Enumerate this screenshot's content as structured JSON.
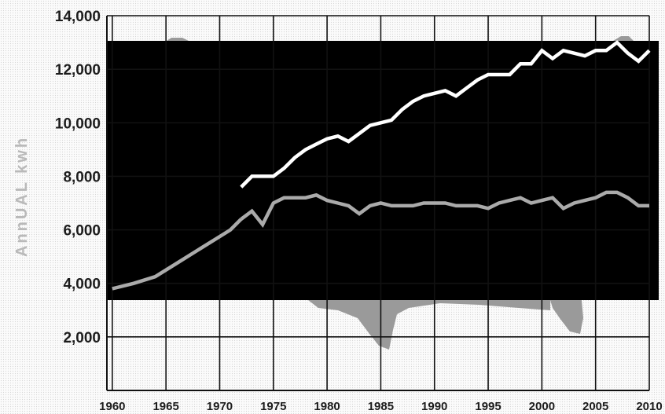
{
  "chart_data": {
    "type": "line",
    "title": "",
    "xlabel": "",
    "ylabel": "AnnUAL kwh",
    "xlim": [
      1959.5,
      2010
    ],
    "ylim": [
      0,
      14000
    ],
    "x_ticks": [
      1960,
      1965,
      1970,
      1975,
      1980,
      1985,
      1990,
      1995,
      2000,
      2005,
      2010
    ],
    "y_ticks": [
      2000,
      4000,
      6000,
      8000,
      10000,
      12000,
      14000
    ],
    "y_tick_labels": [
      "2,000",
      "4,000",
      "6,000",
      "8,000",
      "10,000",
      "12,000",
      "14,000"
    ],
    "x_tick_labels": [
      "1960",
      "1965",
      "1970",
      "1975",
      "1980",
      "1985",
      "1990",
      "1995",
      "2000",
      "2005",
      "2010"
    ],
    "grid": true,
    "legend": "none",
    "colors": {
      "background": "#fbfbfb",
      "panel": "#000000",
      "grid": "#111111",
      "map": "#9a9a9a",
      "series_upper": "#ffffff",
      "series_lower": "#aaaaaa",
      "series_early": "#aaaaaa"
    },
    "series": [
      {
        "key": "early",
        "color": "#aaaaaa",
        "x": [
          1960,
          1962,
          1964,
          1966,
          1968,
          1970,
          1971,
          1972
        ],
        "y": [
          3800,
          4000,
          4250,
          4750,
          5250,
          5750,
          6000,
          6400
        ]
      },
      {
        "key": "upper",
        "color": "#ffffff",
        "x": [
          1972,
          1973,
          1974,
          1975,
          1976,
          1977,
          1978,
          1979,
          1980,
          1981,
          1982,
          1983,
          1984,
          1985,
          1986,
          1987,
          1988,
          1989,
          1990,
          1991,
          1992,
          1993,
          1994,
          1995,
          1996,
          1997,
          1998,
          1999,
          2000,
          2001,
          2002,
          2003,
          2004,
          2005,
          2006,
          2007,
          2008,
          2009,
          2010
        ],
        "y": [
          7600,
          8000,
          8000,
          8000,
          8300,
          8700,
          9000,
          9200,
          9400,
          9500,
          9300,
          9600,
          9900,
          10000,
          10100,
          10500,
          10800,
          11000,
          11100,
          11200,
          11000,
          11300,
          11600,
          11800,
          11800,
          11800,
          12200,
          12200,
          12700,
          12400,
          12700,
          12600,
          12500,
          12700,
          12700,
          13000,
          12600,
          12300,
          12700
        ]
      },
      {
        "key": "lower",
        "color": "#aaaaaa",
        "x": [
          1972,
          1973,
          1974,
          1975,
          1976,
          1977,
          1978,
          1979,
          1980,
          1981,
          1982,
          1983,
          1984,
          1985,
          1986,
          1987,
          1988,
          1989,
          1990,
          1991,
          1992,
          1993,
          1994,
          1995,
          1996,
          1997,
          1998,
          1999,
          2000,
          2001,
          2002,
          2003,
          2004,
          2005,
          2006,
          2007,
          2008,
          2009,
          2010
        ],
        "y": [
          6400,
          6700,
          6200,
          7000,
          7200,
          7200,
          7200,
          7300,
          7100,
          7000,
          6900,
          6600,
          6900,
          7000,
          6900,
          6900,
          6900,
          7000,
          7000,
          7000,
          6900,
          6900,
          6900,
          6800,
          7000,
          7100,
          7200,
          7000,
          7100,
          7200,
          6800,
          7000,
          7100,
          7200,
          7400,
          7400,
          7200,
          6900,
          6900
        ]
      }
    ]
  }
}
